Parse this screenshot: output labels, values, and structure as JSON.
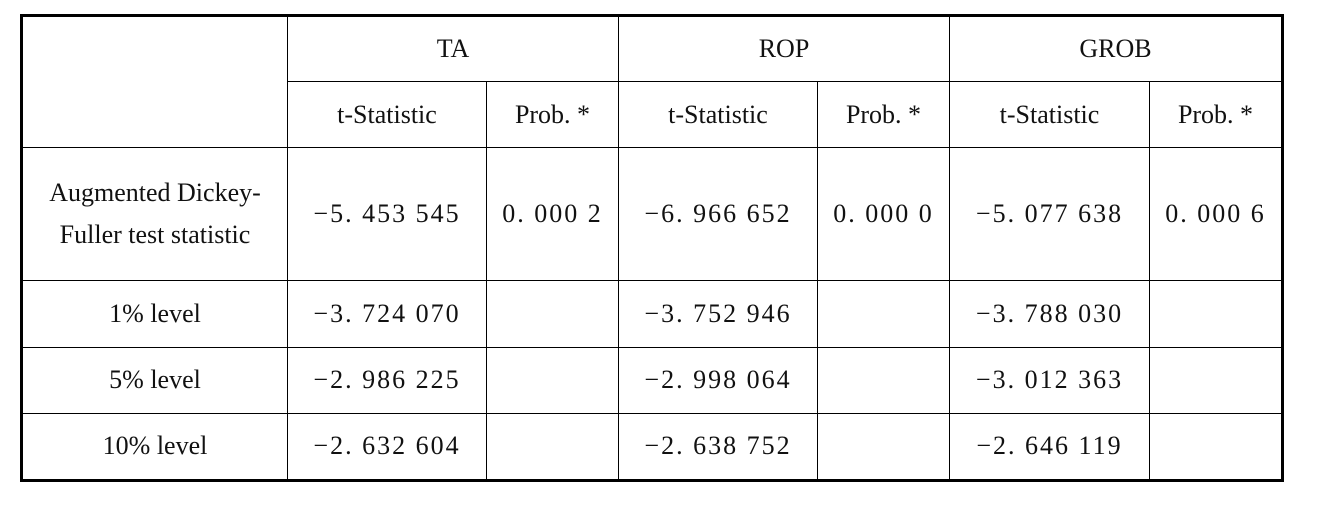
{
  "table": {
    "groups": [
      "TA",
      "ROP",
      "GROB"
    ],
    "columns": [
      "t-Statistic",
      "Prob. *",
      "t-Statistic",
      "Prob. *",
      "t-Statistic",
      "Prob. *"
    ],
    "rows": [
      {
        "label": "Augmented Dickey-Fuller test statistic",
        "values": [
          "−5. 453 545",
          "0. 000 2",
          "−6. 966 652",
          "0. 000 0",
          "−5. 077 638",
          "0. 000 6"
        ]
      },
      {
        "label": "1% level",
        "values": [
          "−3. 724 070",
          "−3. 752 946",
          "−3. 788 030"
        ]
      },
      {
        "label": "5% level",
        "values": [
          "−2. 986 225",
          "−2. 998 064",
          "−3. 012 363"
        ]
      },
      {
        "label": "10% level",
        "values": [
          "−2. 632 604",
          "−2. 638 752",
          "−2. 646 119"
        ]
      }
    ]
  }
}
